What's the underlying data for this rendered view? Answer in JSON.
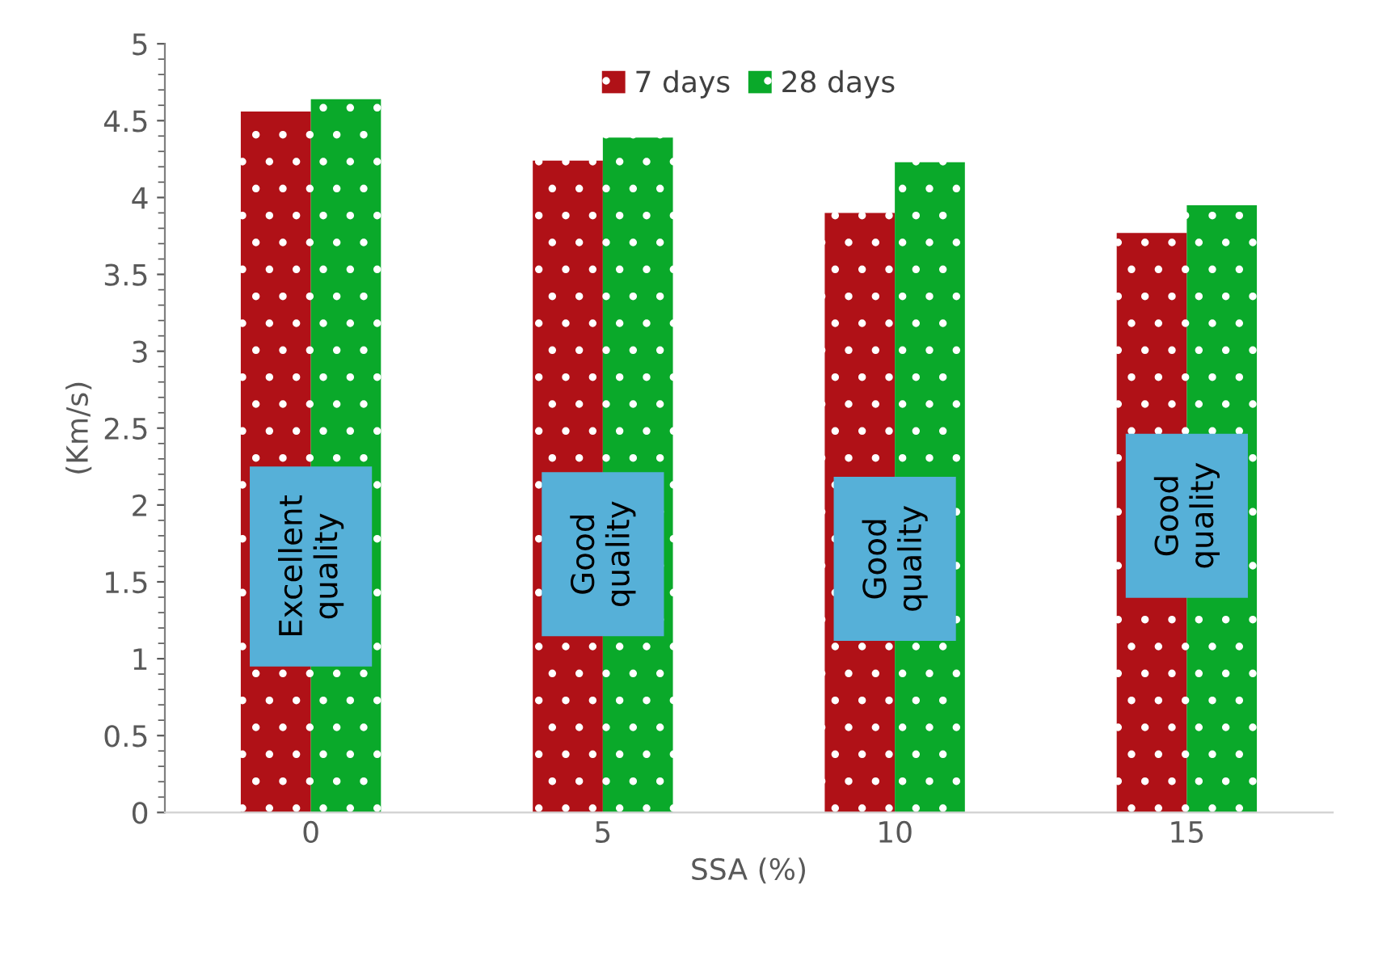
{
  "chart_data": {
    "type": "bar",
    "xlabel": "SSA (%)",
    "ylabel": "(Km/s)",
    "categories": [
      "0",
      "5",
      "10",
      "15"
    ],
    "series": [
      {
        "name": "7 days",
        "color": "#b01117",
        "values": [
          4.56,
          4.24,
          3.9,
          3.77
        ]
      },
      {
        "name": "28 days",
        "color": "#0aa92a",
        "values": [
          4.64,
          4.39,
          4.23,
          3.95
        ]
      }
    ],
    "ylim": [
      0,
      5
    ],
    "yticks": [
      0,
      0.5,
      1,
      1.5,
      2,
      2.5,
      3,
      3.5,
      4,
      4.5,
      5
    ],
    "grid": false,
    "legend": "top",
    "annotations": [
      {
        "text": "Excellent\nquality",
        "x": "0",
        "y": 1.6
      },
      {
        "text": "Good\nquality",
        "x": "5",
        "y": 1.68
      },
      {
        "text": "Good\nquality",
        "x": "10",
        "y": 1.65
      },
      {
        "text": "Good\nquality",
        "x": "15",
        "y": 1.93
      }
    ]
  }
}
